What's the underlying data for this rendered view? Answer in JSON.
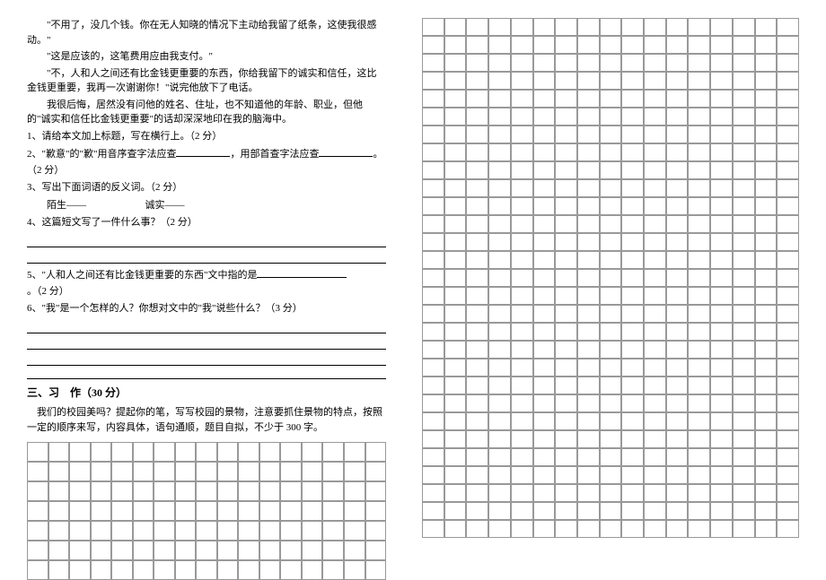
{
  "passage": {
    "lines": [
      "\"不用了，没几个钱。你在无人知晓的情况下主动给我留了纸条，这使我很感动。\"",
      "\"这是应该的，这笔费用应由我支付。\"",
      "\"不，人和人之间还有比金钱更重要的东西，你给我留下的诚实和信任，这比金钱更重要，我再一次谢谢你！\"说完他放下了电话。",
      "我很后悔，居然没有问他的姓名、住址，也不知道他的年龄、职业，但他的\"诚实和信任比金钱更重要\"的话却深深地印在我的脑海中。"
    ]
  },
  "questions": {
    "q1": "1、请给本文加上标题，写在横行上。（2 分）",
    "q2_a": "2、\"歉意\"的\"歉\"用音序查字法应查",
    "q2_b": "，用部首查字法应查",
    "q2_c": "。（2 分）",
    "q3": "3、写出下面词语的反义词。（2 分）",
    "q3_a": "陌生——",
    "q3_b": "诚实——",
    "q4": "4、这篇短文写了一件什么事？（2 分）",
    "q5_a": "5、\"人和人之间还有比金钱更重要的东西\"文中指的是",
    "q5_b": "。（2 分）",
    "q6": "6、\"我\"是一个怎样的人？你想对文中的\"我\"说些什么？（3 分）"
  },
  "section3": {
    "title": "三、习　作（30 分）",
    "prompt": "我们的校园美吗？提起你的笔，写写校园的景物，注意要抓住景物的特点，按照一定的顺序来写，内容具体，语句通顺，题目自拟，不少于 300 字。"
  },
  "grids": {
    "left_cols": 17,
    "left_rows": 7,
    "right_cols": 17,
    "right_rows": 29
  },
  "style": {
    "font_family": "SimSun",
    "body_fontsize": 11,
    "background": "#ffffff",
    "text_color": "#000000",
    "grid_border": "#999999"
  }
}
